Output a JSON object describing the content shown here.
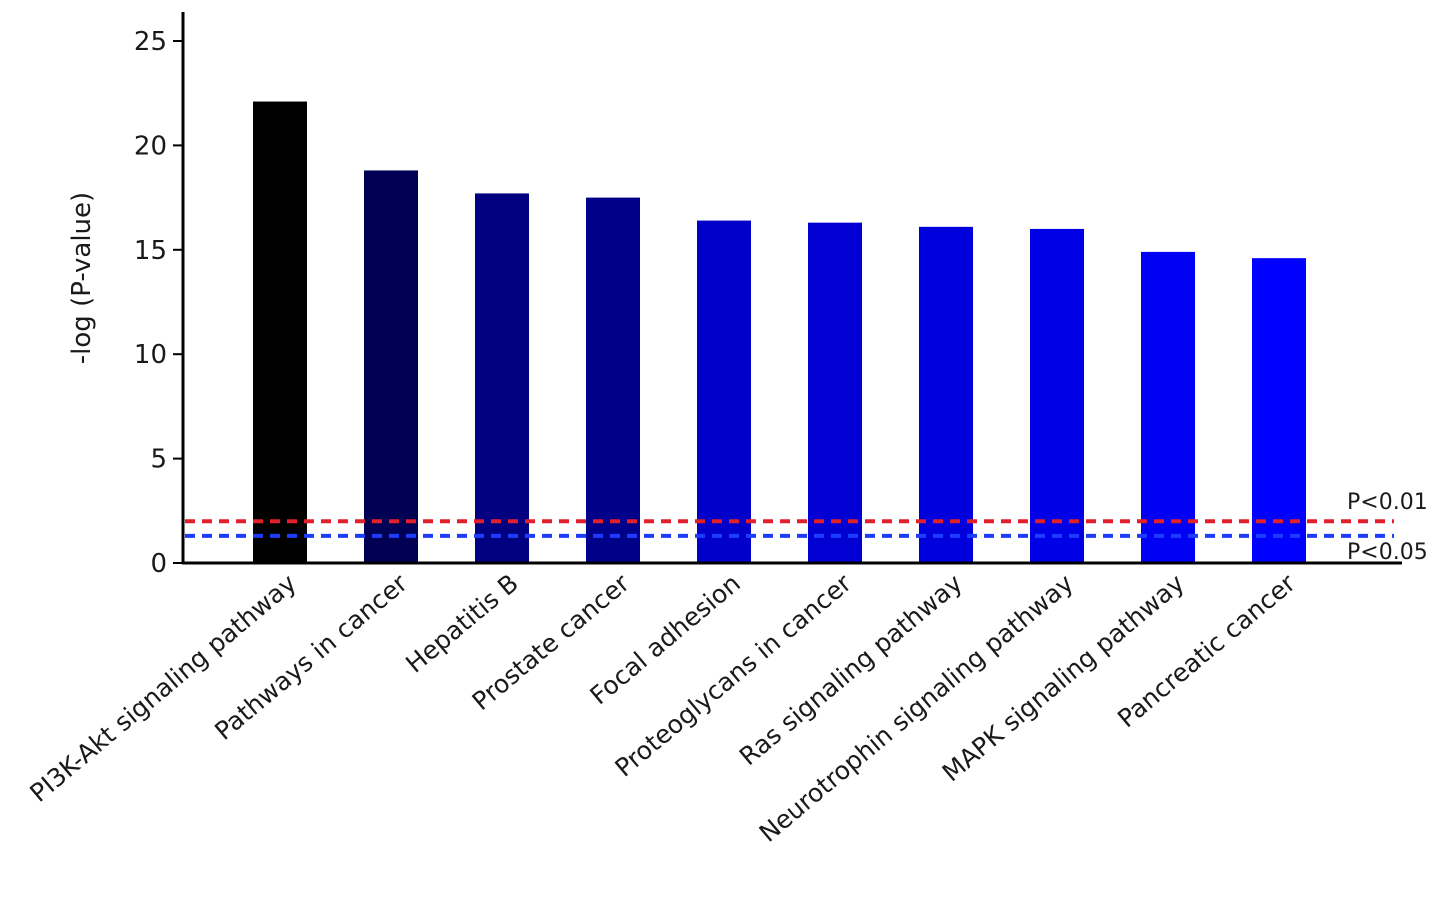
{
  "chart_data": {
    "type": "bar",
    "title": "",
    "xlabel": "",
    "ylabel": "-log (P-value)",
    "ylim": [
      0,
      26
    ],
    "yticks": [
      0,
      5,
      10,
      15,
      20,
      25
    ],
    "grid": false,
    "categories": [
      "PI3K-Akt signaling pathway",
      "Pathways in cancer",
      "Hepatitis B",
      "Prostate cancer",
      "Focal adhesion",
      "Proteoglycans in cancer",
      "Ras signaling pathway",
      "Neurotrophin signaling pathway",
      "MAPK signaling pathway",
      "Pancreatic cancer"
    ],
    "values": [
      22.1,
      18.8,
      17.7,
      17.5,
      16.4,
      16.3,
      16.1,
      16.0,
      14.9,
      14.6
    ],
    "bar_colors": [
      "#000000",
      "#000055",
      "#000080",
      "#00008a",
      "#0000c8",
      "#0000d2",
      "#0000dc",
      "#0000e6",
      "#0000f5",
      "#0000ff"
    ],
    "reference_lines": [
      {
        "label": "P<0.01",
        "value": 2.0,
        "color": "#e0202a",
        "style": "dashed"
      },
      {
        "label": "P<0.05",
        "value": 1.3,
        "color": "#1e3cff",
        "style": "dashed"
      }
    ]
  }
}
